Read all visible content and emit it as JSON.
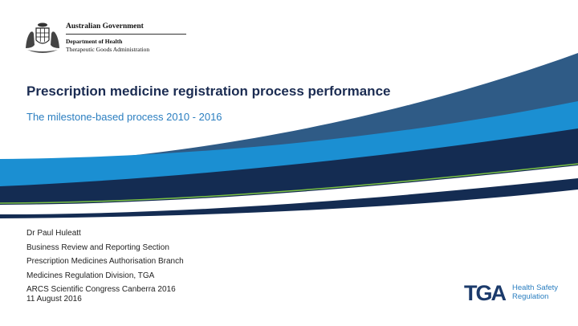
{
  "header": {
    "government": "Australian Government",
    "department": "Department of Health",
    "agency": "Therapeutic Goods Administration"
  },
  "title": "Prescription medicine registration process performance",
  "subtitle": "The milestone-based process 2010 - 2016",
  "presenter": {
    "name": "Dr Paul Huleatt",
    "lines": [
      "Business Review and Reporting Section",
      "Prescription Medicines Authorisation Branch",
      "Medicines Regulation Division, TGA",
      "ARCS Scientific Congress Canberra 2016"
    ]
  },
  "date": "11 August 2016",
  "tga_logo": {
    "mark": "TGA",
    "tagline_1": "Health Safety",
    "tagline_2": "Regulation"
  },
  "colors": {
    "dark_navy": "#142c52",
    "mid_blue": "#2f5b86",
    "light_blue": "#1b8fd2",
    "green_line": "#7cc243",
    "title": "#1b2c52",
    "subtitle": "#2a7ec0"
  },
  "icons": [
    "coat-of-arms-icon"
  ]
}
